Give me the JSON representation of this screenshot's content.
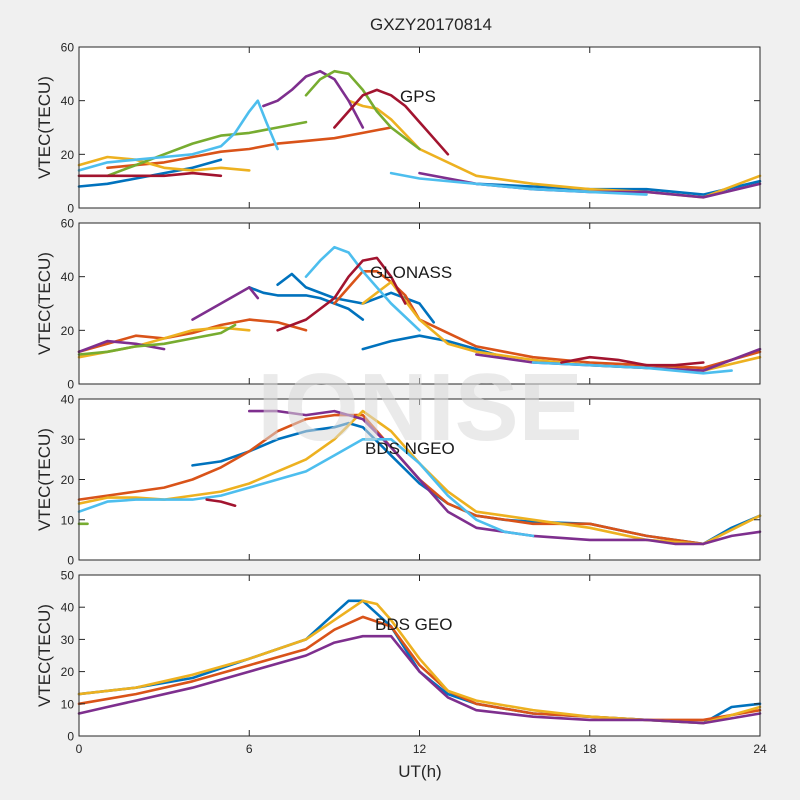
{
  "figure": {
    "title": "GXZY20170814",
    "watermark": "IONISE",
    "background": "#f0f0f0",
    "axes_background": "#ffffff",
    "palette": [
      "#0072bd",
      "#d95319",
      "#edb120",
      "#7e2f8e",
      "#77ac30",
      "#4dbeee",
      "#a2142f"
    ]
  },
  "chart_data": [
    {
      "type": "line",
      "panel_label": "GPS",
      "ylabel": "VTEC(TECU)",
      "xlim": [
        0,
        24
      ],
      "ylim": [
        0,
        60
      ],
      "yticks": [
        0,
        20,
        40,
        60
      ],
      "xticks": [
        0,
        6,
        12,
        18,
        24
      ],
      "series": [
        {
          "color": "#0072bd",
          "x": [
            0,
            1,
            2,
            3,
            4,
            5
          ],
          "y": [
            8,
            9,
            11,
            13,
            15,
            18
          ]
        },
        {
          "color": "#0072bd",
          "x": [
            14,
            16,
            18,
            20,
            22,
            24
          ],
          "y": [
            9,
            8,
            7,
            7,
            5,
            10
          ]
        },
        {
          "color": "#d95319",
          "x": [
            1,
            2,
            3,
            4,
            5,
            6,
            7,
            8,
            9,
            10,
            11
          ],
          "y": [
            15,
            16,
            17,
            19,
            21,
            22,
            24,
            25,
            26,
            28,
            30
          ]
        },
        {
          "color": "#edb120",
          "x": [
            0,
            1,
            2,
            3,
            4,
            5,
            6
          ],
          "y": [
            16,
            19,
            18,
            15,
            14,
            15,
            14
          ]
        },
        {
          "color": "#edb120",
          "x": [
            9.5,
            10,
            10.5,
            11,
            12,
            14,
            16,
            18,
            20,
            22,
            24
          ],
          "y": [
            40,
            38,
            37,
            33,
            22,
            12,
            9,
            7,
            6,
            4,
            12
          ]
        },
        {
          "color": "#7e2f8e",
          "x": [
            6.5,
            7,
            7.5,
            8,
            8.5,
            9,
            9.5,
            10
          ],
          "y": [
            38,
            40,
            44,
            49,
            51,
            48,
            40,
            30
          ]
        },
        {
          "color": "#7e2f8e",
          "x": [
            12,
            14,
            16,
            18,
            20,
            22,
            24
          ],
          "y": [
            13,
            9,
            7,
            6,
            6,
            4,
            9
          ]
        },
        {
          "color": "#77ac30",
          "x": [
            1,
            2,
            3,
            4,
            5,
            6,
            7,
            8
          ],
          "y": [
            12,
            16,
            20,
            24,
            27,
            28,
            30,
            32
          ]
        },
        {
          "color": "#77ac30",
          "x": [
            8,
            8.5,
            9,
            9.5,
            10,
            10.5,
            11,
            12
          ],
          "y": [
            42,
            48,
            51,
            50,
            44,
            36,
            30,
            22
          ]
        },
        {
          "color": "#4dbeee",
          "x": [
            0,
            1,
            2,
            3,
            4,
            5,
            5.5,
            6,
            6.3,
            6.6,
            7
          ],
          "y": [
            14,
            17,
            18,
            19,
            20,
            23,
            28,
            36,
            40,
            32,
            22
          ]
        },
        {
          "color": "#4dbeee",
          "x": [
            11,
            12,
            14,
            16,
            18,
            20
          ],
          "y": [
            13,
            11,
            9,
            7,
            6,
            5
          ]
        },
        {
          "color": "#a2142f",
          "x": [
            9,
            9.5,
            10,
            10.5,
            11,
            11.5,
            12,
            12.5,
            13
          ],
          "y": [
            30,
            36,
            42,
            44,
            42,
            38,
            32,
            26,
            20
          ]
        },
        {
          "color": "#a2142f",
          "x": [
            0,
            1,
            2,
            3,
            4,
            5
          ],
          "y": [
            12,
            12,
            12,
            12,
            13,
            12
          ]
        }
      ]
    },
    {
      "type": "line",
      "panel_label": "GLONASS",
      "ylabel": "VTEC(TECU)",
      "xlim": [
        0,
        24
      ],
      "ylim": [
        0,
        60
      ],
      "yticks": [
        0,
        20,
        40,
        60
      ],
      "xticks": [
        0,
        6,
        12,
        18,
        24
      ],
      "series": [
        {
          "color": "#0072bd",
          "x": [
            6,
            6.5,
            7,
            7.5,
            8,
            8.5,
            9,
            9.5,
            10
          ],
          "y": [
            36,
            34,
            33,
            33,
            33,
            32,
            30,
            28,
            24
          ]
        },
        {
          "color": "#0072bd",
          "x": [
            7,
            7.5,
            8,
            9,
            10,
            11,
            12,
            12.5
          ],
          "y": [
            37,
            41,
            36,
            32,
            30,
            34,
            30,
            23
          ]
        },
        {
          "color": "#0072bd",
          "x": [
            10,
            11,
            12,
            13,
            14,
            15
          ],
          "y": [
            13,
            16,
            18,
            16,
            13,
            10
          ]
        },
        {
          "color": "#d95319",
          "x": [
            0,
            1,
            2,
            3,
            4,
            5,
            6,
            7,
            8
          ],
          "y": [
            12,
            15,
            18,
            17,
            19,
            22,
            24,
            23,
            20
          ]
        },
        {
          "color": "#d95319",
          "x": [
            9,
            9.5,
            10,
            10.5,
            11,
            11.5,
            12,
            14,
            16,
            18,
            20,
            22,
            24
          ],
          "y": [
            30,
            36,
            42,
            42,
            38,
            33,
            24,
            14,
            10,
            8,
            7,
            6,
            12
          ]
        },
        {
          "color": "#edb120",
          "x": [
            0,
            1,
            2,
            3,
            4,
            5,
            6
          ],
          "y": [
            10,
            12,
            14,
            17,
            20,
            21,
            20
          ]
        },
        {
          "color": "#edb120",
          "x": [
            10,
            11,
            12,
            13,
            14,
            16,
            18,
            20,
            22,
            24
          ],
          "y": [
            30,
            38,
            24,
            15,
            12,
            9,
            7,
            6,
            5,
            10
          ]
        },
        {
          "color": "#7e2f8e",
          "x": [
            0,
            1,
            2,
            3
          ],
          "y": [
            12,
            16,
            15,
            13
          ]
        },
        {
          "color": "#7e2f8e",
          "x": [
            4,
            5,
            6,
            6.3
          ],
          "y": [
            24,
            30,
            36,
            32
          ]
        },
        {
          "color": "#7e2f8e",
          "x": [
            14,
            16,
            18,
            20,
            22,
            24
          ],
          "y": [
            11,
            8,
            7,
            6,
            5,
            13
          ]
        },
        {
          "color": "#77ac30",
          "x": [
            0,
            1,
            2,
            3,
            4,
            5,
            5.5
          ],
          "y": [
            11,
            12,
            14,
            15,
            17,
            19,
            22
          ]
        },
        {
          "color": "#4dbeee",
          "x": [
            8,
            8.5,
            9,
            9.5,
            10,
            10.5,
            11,
            12
          ],
          "y": [
            40,
            46,
            51,
            49,
            42,
            36,
            30,
            20
          ]
        },
        {
          "color": "#4dbeee",
          "x": [
            16,
            18,
            20,
            22,
            23
          ],
          "y": [
            8,
            7,
            6,
            4,
            5
          ]
        },
        {
          "color": "#a2142f",
          "x": [
            7,
            8,
            9,
            9.5,
            10,
            10.5,
            11,
            11.5
          ],
          "y": [
            20,
            24,
            32,
            40,
            46,
            47,
            40,
            30
          ]
        },
        {
          "color": "#a2142f",
          "x": [
            17,
            18,
            19,
            20,
            21,
            22
          ],
          "y": [
            8,
            10,
            9,
            7,
            7,
            8
          ]
        }
      ]
    },
    {
      "type": "line",
      "panel_label": "BDS NGEO",
      "ylabel": "VTEC(TECU)",
      "xlim": [
        0,
        24
      ],
      "ylim": [
        0,
        40
      ],
      "yticks": [
        0,
        10,
        20,
        30,
        40
      ],
      "xticks": [
        0,
        6,
        12,
        18,
        24
      ],
      "series": [
        {
          "color": "#0072bd",
          "x": [
            4,
            5,
            6,
            7,
            8,
            9,
            9.5,
            10,
            11,
            12,
            13,
            14,
            15,
            16,
            18,
            20,
            22,
            23,
            24
          ],
          "y": [
            23.5,
            24.5,
            27,
            30,
            32,
            33,
            34,
            33,
            26,
            19,
            14,
            11,
            10,
            9.5,
            9,
            6,
            4,
            8,
            11
          ]
        },
        {
          "color": "#d95319",
          "x": [
            0,
            1,
            2,
            3,
            4,
            5,
            6,
            7,
            8,
            9,
            10,
            11,
            12,
            13,
            14,
            16,
            18,
            20,
            22
          ],
          "y": [
            15,
            16,
            17,
            18,
            20,
            23,
            27,
            32,
            35,
            36,
            36,
            28,
            20,
            14,
            11,
            9,
            9,
            6,
            4
          ]
        },
        {
          "color": "#edb120",
          "x": [
            0,
            1,
            2,
            3,
            4,
            5,
            6,
            7,
            8,
            9,
            10,
            11,
            12,
            13,
            14,
            16,
            18,
            20,
            22,
            24
          ],
          "y": [
            14,
            15.5,
            15.5,
            15,
            16,
            17,
            19,
            22,
            25,
            30,
            37,
            32,
            24,
            17,
            12,
            10,
            8,
            5,
            4,
            11
          ]
        },
        {
          "color": "#7e2f8e",
          "x": [
            6,
            7,
            8,
            9,
            10,
            11,
            12,
            13,
            14,
            16,
            18,
            20,
            21,
            22,
            23,
            24
          ],
          "y": [
            37,
            37,
            36,
            37,
            35,
            28,
            20,
            12,
            8,
            6,
            5,
            5,
            4,
            4,
            6,
            7
          ]
        },
        {
          "color": "#4dbeee",
          "x": [
            0,
            1,
            2,
            3,
            4,
            5,
            6,
            7,
            8,
            9,
            10,
            11,
            12,
            13,
            14,
            15,
            16
          ],
          "y": [
            12,
            14.5,
            15,
            15,
            15,
            16,
            18,
            20,
            22,
            26,
            30,
            30,
            24,
            16,
            10,
            7,
            6
          ]
        },
        {
          "color": "#a2142f",
          "x": [
            4.5,
            5,
            5.5
          ],
          "y": [
            15,
            14.5,
            13.5
          ]
        },
        {
          "color": "#77ac30",
          "x": [
            0,
            0.3
          ],
          "y": [
            9,
            9
          ]
        }
      ]
    },
    {
      "type": "line",
      "panel_label": "BDS GEO",
      "ylabel": "VTEC(TECU)",
      "xlabel": "UT(h)",
      "xlim": [
        0,
        24
      ],
      "ylim": [
        0,
        50
      ],
      "yticks": [
        0,
        10,
        20,
        30,
        40,
        50
      ],
      "xticks": [
        0,
        6,
        12,
        18,
        24
      ],
      "xticklabels": [
        "0",
        "6",
        "12",
        "18",
        "24"
      ],
      "series": [
        {
          "color": "#0072bd",
          "x": [
            0,
            2,
            4,
            6,
            8,
            9,
            9.5,
            10,
            11,
            12,
            13,
            14,
            16,
            18,
            20,
            22,
            23,
            24
          ],
          "y": [
            13,
            15,
            18,
            24,
            30,
            38,
            42,
            42,
            34,
            20,
            13,
            10,
            7,
            6,
            5,
            4,
            9,
            10
          ]
        },
        {
          "color": "#d95319",
          "x": [
            0,
            2,
            4,
            6,
            8,
            9,
            10,
            11,
            12,
            13,
            14,
            16,
            18,
            20,
            22,
            24
          ],
          "y": [
            10,
            13,
            17,
            22,
            27,
            33,
            37,
            34,
            22,
            14,
            10,
            7,
            6,
            5,
            5,
            8
          ]
        },
        {
          "color": "#edb120",
          "x": [
            0,
            2,
            4,
            6,
            8,
            9,
            10,
            10.5,
            11,
            12,
            13,
            14,
            16,
            18,
            20,
            22,
            24
          ],
          "y": [
            13,
            15,
            19,
            24,
            30,
            36,
            42,
            41,
            36,
            24,
            14,
            11,
            8,
            6,
            5,
            4,
            9
          ]
        },
        {
          "color": "#7e2f8e",
          "x": [
            0,
            1,
            2,
            4,
            6,
            8,
            9,
            10,
            11,
            12,
            13,
            14,
            16,
            18,
            20,
            22,
            24
          ],
          "y": [
            7,
            9,
            11,
            15,
            20,
            25,
            29,
            31,
            31,
            20,
            12,
            8,
            6,
            5,
            5,
            4,
            7
          ]
        }
      ]
    }
  ]
}
